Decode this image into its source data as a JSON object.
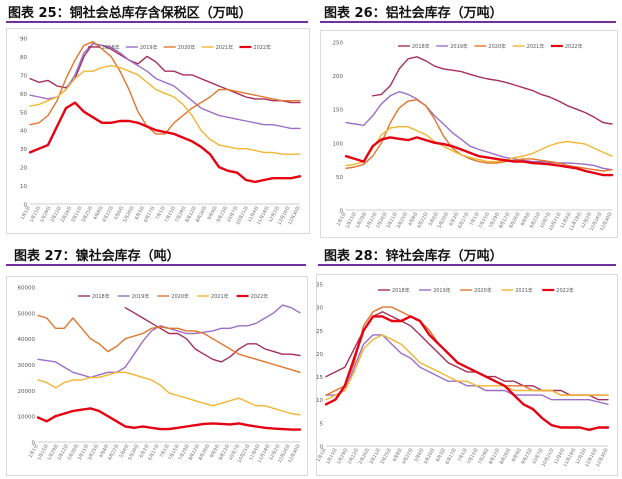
{
  "captions": {
    "c25": "图表 25：铜社会总库存含保税区（万吨）",
    "c26": "图表 26：铝社会库存（万吨）",
    "c27": "图表 27：镍社会库存（吨）",
    "c28": "图表 28：锌社会库存（万吨）"
  },
  "colors": {
    "2018年": "#a5305a",
    "2019年": "#9b6fc8",
    "2020年": "#e1762d",
    "2021年": "#f2b632",
    "2022年": "#e60012",
    "rule": "#7030a0"
  },
  "chart_data": [
    {
      "id": "copper",
      "type": "line",
      "title": "图表 25：铜社会总库存含保税区（万吨）",
      "ylim": [
        0,
        90
      ],
      "yticks": [
        0,
        10,
        20,
        30,
        40,
        50,
        60,
        70,
        80,
        90
      ],
      "xticks": [
        "1月1日",
        "1月15日",
        "1月29日",
        "2月12日",
        "2月26日",
        "3月11日",
        "3月25日",
        "4月8日",
        "4月22日",
        "5月6日",
        "5月20日",
        "6月3日",
        "6月17日",
        "7月1日",
        "7月15日",
        "7月29日",
        "8月12日",
        "8月26日",
        "9月9日",
        "9月23日",
        "10月7日",
        "10月21日",
        "11月4日",
        "11月18日",
        "12月2日",
        "12月16日",
        "12月30日"
      ],
      "legend_position": "top",
      "series": [
        {
          "name": "2018年",
          "values": [
            68,
            66,
            67,
            64,
            63,
            68,
            80,
            87,
            86,
            84,
            81,
            78,
            76,
            80,
            77,
            72,
            72,
            70,
            70,
            68,
            66,
            64,
            62,
            60,
            58,
            57,
            57,
            56,
            56,
            55,
            55
          ]
        },
        {
          "name": "2019年",
          "values": [
            59,
            58,
            57,
            58,
            62,
            70,
            82,
            87,
            86,
            85,
            82,
            78,
            75,
            72,
            68,
            66,
            64,
            60,
            56,
            52,
            50,
            48,
            47,
            46,
            45,
            44,
            43,
            43,
            42,
            41,
            41
          ]
        },
        {
          "name": "2020年",
          "values": [
            43,
            44,
            48,
            56,
            68,
            78,
            86,
            88,
            84,
            80,
            72,
            62,
            50,
            42,
            38,
            38,
            44,
            48,
            52,
            55,
            58,
            62,
            62,
            61,
            60,
            59,
            58,
            57,
            56,
            56,
            56
          ]
        },
        {
          "name": "2021年",
          "values": [
            53,
            54,
            56,
            58,
            62,
            68,
            72,
            72,
            74,
            75,
            74,
            72,
            70,
            66,
            62,
            60,
            58,
            54,
            48,
            40,
            35,
            32,
            31,
            30,
            30,
            29,
            28,
            28,
            27,
            27,
            27
          ]
        },
        {
          "name": "2022年",
          "values": [
            28,
            30,
            32,
            42,
            52,
            55,
            50,
            47,
            44,
            44,
            45,
            45,
            44,
            42,
            40,
            39,
            38,
            36,
            34,
            31,
            27,
            20,
            18,
            17,
            13,
            12,
            13,
            14,
            14,
            14,
            15
          ]
        }
      ]
    },
    {
      "id": "aluminium",
      "type": "line",
      "title": "图表 26：铝社会库存（万吨）",
      "ylim": [
        0,
        250
      ],
      "yticks": [
        0,
        50,
        100,
        150,
        200,
        250
      ],
      "xticks": [
        "1月1日",
        "1月15日",
        "1月29日",
        "2月12日",
        "2月26日",
        "3月11日",
        "3月25日",
        "4月8日",
        "4月22日",
        "5月6日",
        "5月20日",
        "6月3日",
        "6月17日",
        "7月1日",
        "7月15日",
        "7月29日",
        "8月12日",
        "8月26日",
        "9月9日",
        "9月23日",
        "10月7日",
        "10月21日",
        "11月4日",
        "11月18日",
        "12月2日",
        "12月16日",
        "12月30日"
      ],
      "legend_position": "top",
      "series": [
        {
          "name": "2018年",
          "values": [
            null,
            null,
            null,
            170,
            172,
            185,
            210,
            225,
            228,
            222,
            214,
            210,
            208,
            206,
            202,
            198,
            195,
            193,
            190,
            186,
            182,
            178,
            172,
            168,
            162,
            155,
            150,
            145,
            138,
            130,
            128
          ]
        },
        {
          "name": "2019年",
          "values": [
            130,
            128,
            126,
            140,
            158,
            170,
            176,
            172,
            165,
            155,
            140,
            128,
            115,
            105,
            95,
            90,
            86,
            82,
            78,
            76,
            74,
            72,
            72,
            71,
            70,
            70,
            69,
            68,
            66,
            62,
            60
          ]
        },
        {
          "name": "2020年",
          "values": [
            62,
            64,
            68,
            80,
            100,
            130,
            152,
            162,
            164,
            155,
            135,
            110,
            92,
            82,
            76,
            72,
            70,
            70,
            72,
            74,
            76,
            76,
            74,
            72,
            70,
            66,
            64,
            62,
            60,
            58,
            60
          ]
        },
        {
          "name": "2021年",
          "values": [
            66,
            68,
            72,
            92,
            112,
            122,
            124,
            124,
            118,
            112,
            102,
            95,
            88,
            82,
            78,
            75,
            72,
            72,
            74,
            78,
            80,
            84,
            90,
            96,
            100,
            102,
            100,
            98,
            92,
            86,
            80
          ]
        },
        {
          "name": "2022年",
          "values": [
            80,
            76,
            72,
            95,
            105,
            108,
            106,
            104,
            108,
            104,
            100,
            98,
            95,
            90,
            85,
            80,
            78,
            76,
            74,
            72,
            72,
            70,
            69,
            68,
            66,
            64,
            62,
            58,
            55,
            52,
            52
          ]
        }
      ]
    },
    {
      "id": "nickel",
      "type": "line",
      "title": "图表 27：镍社会库存（吨）",
      "ylim": [
        0,
        60000
      ],
      "yticks": [
        0,
        10000,
        20000,
        30000,
        40000,
        50000,
        60000
      ],
      "xticks": [
        "1月1日",
        "1月15日",
        "1月29日",
        "2月12日",
        "2月26日",
        "3月11日",
        "3月25日",
        "4月8日",
        "4月22日",
        "5月6日",
        "5月20日",
        "6月3日",
        "6月17日",
        "7月1日",
        "7月15日",
        "7月29日",
        "8月12日",
        "8月26日",
        "9月9日",
        "9月23日",
        "10月7日",
        "10月21日",
        "11月4日",
        "11月18日",
        "12月2日",
        "12月16日",
        "12月30日"
      ],
      "legend_position": "top",
      "series": [
        {
          "name": "2018年",
          "values": [
            null,
            null,
            null,
            null,
            null,
            null,
            null,
            null,
            null,
            null,
            52000,
            50000,
            48000,
            46000,
            44000,
            42000,
            42000,
            40000,
            36000,
            34000,
            32000,
            31000,
            33000,
            36000,
            38000,
            38000,
            36000,
            35000,
            34000,
            34000,
            33500
          ]
        },
        {
          "name": "2019年",
          "values": [
            32000,
            31500,
            31000,
            29000,
            27000,
            26000,
            25000,
            26000,
            27000,
            27000,
            29000,
            34000,
            39000,
            43000,
            45000,
            44000,
            43000,
            42000,
            42000,
            42500,
            43000,
            44000,
            44000,
            45000,
            45000,
            46000,
            48000,
            50000,
            53000,
            52000,
            50000
          ]
        },
        {
          "name": "2020年",
          "values": [
            49000,
            48000,
            44000,
            44000,
            48000,
            44000,
            40000,
            38000,
            35000,
            37000,
            40000,
            41000,
            42000,
            44000,
            44500,
            44000,
            44000,
            43000,
            43000,
            42000,
            40000,
            38000,
            36000,
            34000,
            33000,
            32000,
            31000,
            30000,
            29000,
            28000,
            27000
          ]
        },
        {
          "name": "2021年",
          "values": [
            24000,
            23000,
            21000,
            23000,
            24000,
            24000,
            25000,
            25000,
            26000,
            27000,
            27000,
            26000,
            25000,
            24000,
            22000,
            19000,
            18000,
            17000,
            16000,
            15000,
            14000,
            15000,
            16000,
            17000,
            15500,
            14000,
            14000,
            13000,
            12000,
            11000,
            10500
          ]
        },
        {
          "name": "2022年",
          "values": [
            9500,
            8000,
            10000,
            11000,
            12000,
            12500,
            13000,
            12000,
            10000,
            8000,
            6000,
            5500,
            6000,
            5500,
            5000,
            5000,
            5500,
            6000,
            6500,
            7000,
            7200,
            7000,
            6800,
            7200,
            6500,
            6000,
            5500,
            5200,
            5000,
            4800,
            4800
          ]
        }
      ]
    },
    {
      "id": "zinc",
      "type": "line",
      "title": "图表 28：锌社会库存（万吨）",
      "ylim": [
        0,
        35
      ],
      "yticks": [
        0,
        5,
        10,
        15,
        20,
        25,
        30,
        35
      ],
      "xticks": [
        "1月1日",
        "1月15日",
        "1月29日",
        "2月12日",
        "2月26日",
        "3月11日",
        "3月25日",
        "4月8日",
        "4月22日",
        "5月6日",
        "5月20日",
        "6月3日",
        "6月17日",
        "7月1日",
        "7月15日",
        "7月29日",
        "8月12日",
        "8月26日",
        "9月9日",
        "9月23日",
        "10月7日",
        "10月21日",
        "11月4日",
        "11月18日",
        "12月2日",
        "12月16日",
        "12月30日"
      ],
      "legend_position": "top",
      "series": [
        {
          "name": "2018年",
          "values": [
            15,
            16,
            17,
            21,
            25,
            28,
            29,
            28,
            27,
            26,
            24,
            22,
            20,
            18,
            17,
            16,
            16,
            15,
            15,
            14,
            14,
            13,
            13,
            12,
            12,
            12,
            11,
            11,
            11,
            10,
            10
          ]
        },
        {
          "name": "2019年",
          "values": [
            11,
            11,
            12,
            17,
            22,
            24,
            24,
            22,
            20,
            19,
            17,
            16,
            15,
            14,
            14,
            13,
            13,
            12,
            12,
            12,
            11,
            11,
            11,
            11,
            10,
            10,
            10,
            10,
            10,
            9.5,
            9
          ]
        },
        {
          "name": "2020年",
          "values": [
            11,
            12,
            13,
            18,
            26,
            29,
            30,
            30,
            29,
            28,
            27,
            25,
            22,
            20,
            18,
            17,
            16,
            15,
            14,
            13,
            13,
            13,
            12,
            12,
            12,
            11,
            11,
            11,
            11,
            11,
            11
          ]
        },
        {
          "name": "2021年",
          "values": [
            10,
            11,
            12,
            16,
            21,
            23,
            24,
            23,
            22,
            20,
            18,
            17,
            16,
            15,
            14,
            14,
            13,
            13,
            13,
            13,
            12,
            12,
            12,
            12,
            12,
            11,
            11,
            11,
            11,
            11,
            11
          ]
        },
        {
          "name": "2022年",
          "values": [
            9,
            10,
            13,
            19,
            25,
            28,
            28,
            27,
            27,
            28,
            27,
            24,
            22,
            20,
            18,
            17,
            16,
            15,
            14,
            13,
            11,
            9,
            8,
            6,
            4.5,
            4,
            4,
            4,
            3.5,
            4,
            4
          ]
        }
      ]
    }
  ]
}
